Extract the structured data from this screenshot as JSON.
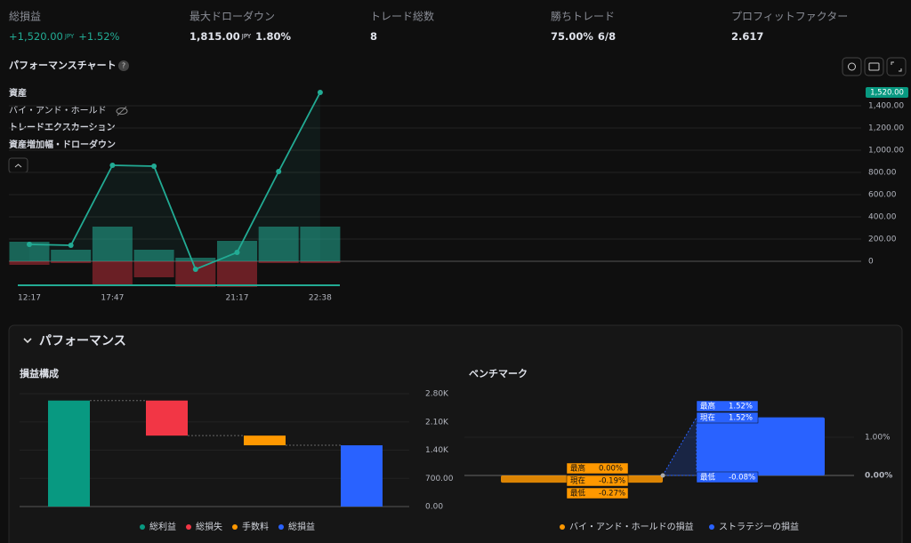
{
  "stats": [
    {
      "label": "総損益",
      "value": "+1,520.00",
      "unit": "JPY",
      "extra": "+1.52%",
      "color": "#22ab94"
    },
    {
      "label": "最大ドローダウン",
      "value": "1,815.00",
      "unit": "JPY",
      "extra": "1.80%"
    },
    {
      "label": "トレード総数",
      "value": "8"
    },
    {
      "label": "勝ちトレード",
      "value": "75.00%",
      "extra": "6/8"
    },
    {
      "label": "プロフィットファクター",
      "value": "2.617"
    }
  ],
  "equity_chart": {
    "type": "line",
    "title": "パフォーマンスチャート",
    "legend": [
      {
        "name": "資産",
        "active": true
      },
      {
        "name": "バイ・アンド・ホールド",
        "active": false
      },
      {
        "name": "トレードエクスカーション",
        "active": true
      },
      {
        "name": "資産増加幅・ドローダウン",
        "active": true
      }
    ],
    "x": [
      "12:17",
      null,
      "17:47",
      null,
      null,
      "21:17",
      null,
      "22:38"
    ],
    "equity": [
      152,
      144,
      864,
      856,
      -72,
      80,
      808,
      1520
    ],
    "run_up": [
      176,
      104,
      312,
      104,
      32,
      184,
      312,
      312
    ],
    "drawdown": [
      -32,
      -16,
      -208,
      -144,
      -232,
      -232,
      -16,
      -16
    ],
    "last_value_label": "1,520.00",
    "color": "#22ab94",
    "ylim": [
      -240,
      1560
    ],
    "yticks": [
      0,
      {
        "value": 200,
        "label": "200.00"
      },
      {
        "value": 400,
        "label": "400.00"
      },
      {
        "value": 600,
        "label": "600.00"
      },
      {
        "value": 800,
        "label": "800.00"
      },
      {
        "value": 1000,
        "label": "1,000.00"
      },
      {
        "value": 1200,
        "label": "1,200.00"
      },
      {
        "value": 1400,
        "label": "1,400.00"
      }
    ]
  },
  "performance": {
    "title": "パフォーマンス",
    "pnl": {
      "type": "waterfall",
      "title": "損益構成",
      "categories": [
        "総利益",
        "総損失",
        "手数料",
        "総損益"
      ],
      "values": [
        2630,
        -870,
        -240,
        1520
      ],
      "colors": [
        "#089981",
        "#f23645",
        "#ff9800",
        "#2962ff"
      ],
      "ylim": [
        0,
        2800
      ],
      "yticks": [
        {
          "value": 0,
          "label": "0.00"
        },
        {
          "value": 700,
          "label": "700.00"
        },
        {
          "value": 1400,
          "label": "1.40K"
        },
        {
          "value": 2100,
          "label": "2.10K"
        },
        {
          "value": 2800,
          "label": "2.80K"
        }
      ]
    },
    "benchmark": {
      "type": "bar",
      "title": "ベンチマーク",
      "stat_names": [
        "最高",
        "現在",
        "最低"
      ],
      "series": [
        {
          "name": "バイ・アンド・ホールドの損益",
          "color": "#ff9800",
          "values": [
            0,
            -0.19,
            -0.27
          ],
          "value_labels": [
            "0.00%",
            "-0.19%",
            "-0.27%"
          ]
        },
        {
          "name": "ストラテジーの損益",
          "color": "#2962ff",
          "values": [
            1.52,
            1.52,
            -0.08
          ],
          "value_labels": [
            "1.52%",
            "1.52%",
            "-0.08%"
          ]
        }
      ],
      "ylim": [
        -0.93,
        2.14
      ],
      "yticks": [
        {
          "value": 1,
          "label": "1.00%"
        },
        {
          "value": 0,
          "label": "0.00%"
        }
      ]
    }
  }
}
